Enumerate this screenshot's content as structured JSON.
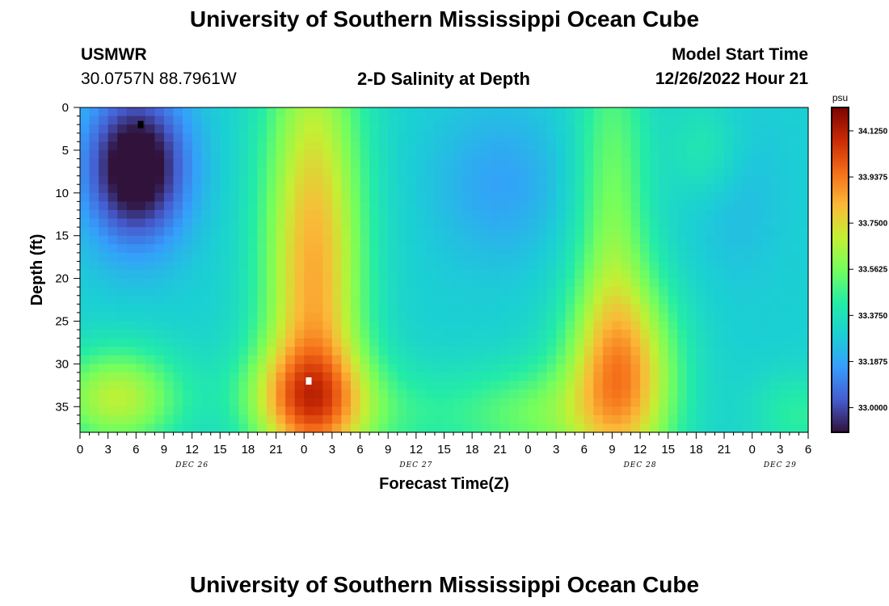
{
  "page": {
    "title_top": "University of Southern Mississippi Ocean Cube",
    "title_bottom": "University of Southern Mississippi Ocean Cube",
    "station_name": "USMWR",
    "station_coords": "30.0757N  88.7961W",
    "plot_title": "2-D Salinity at Depth",
    "model_start_label": "Model Start Time",
    "model_start_value": "12/26/2022 Hour 21"
  },
  "chart_data": {
    "type": "heatmap",
    "title": "2-D Salinity at Depth",
    "xlabel": "Forecast Time(Z)",
    "ylabel": "Depth (ft)",
    "xlim": [
      0,
      78
    ],
    "ylim": [
      38,
      0
    ],
    "y_inverted": true,
    "x_ticks": [
      0,
      3,
      6,
      9,
      12,
      15,
      18,
      21,
      24,
      27,
      30,
      33,
      36,
      39,
      42,
      45,
      48,
      51,
      54,
      57,
      60,
      63,
      66,
      69,
      72,
      75,
      78
    ],
    "x_tick_labels": [
      "0",
      "3",
      "6",
      "9",
      "12",
      "15",
      "18",
      "21",
      "0",
      "3",
      "6",
      "9",
      "12",
      "15",
      "18",
      "21",
      "0",
      "3",
      "6",
      "9",
      "12",
      "15",
      "18",
      "21",
      "0",
      "3",
      "6"
    ],
    "date_labels": [
      {
        "x": 12,
        "label": "DEC 26"
      },
      {
        "x": 36,
        "label": "DEC 27"
      },
      {
        "x": 60,
        "label": "DEC 28"
      },
      {
        "x": 75,
        "label": "DEC 29"
      }
    ],
    "y_ticks": [
      0,
      5,
      10,
      15,
      20,
      25,
      30,
      35
    ],
    "y_tick_labels": [
      "0",
      "5",
      "10",
      "15",
      "20",
      "25",
      "30",
      "35"
    ],
    "colorbar": {
      "unit": "psu",
      "min": 32.9,
      "max": 34.22,
      "ticks": [
        33.0,
        33.1875,
        33.375,
        33.5625,
        33.75,
        33.9375,
        34.125
      ],
      "tick_labels": [
        "33.0000",
        "33.1875",
        "33.3750",
        "33.5625",
        "33.7500",
        "33.9375",
        "34.1250"
      ],
      "colormap": "turbo"
    },
    "markers": [
      {
        "x": 6.5,
        "y": 2,
        "color": "#000000"
      },
      {
        "x": 24.5,
        "y": 32,
        "color": "#ffffff"
      }
    ],
    "features": {
      "base_psu": 33.3,
      "blobs": [
        {
          "x": 6,
          "y": 7,
          "sx": 5.5,
          "sy": 9,
          "amp": -0.5
        },
        {
          "x": 25,
          "y": 20,
          "sx": 5.5,
          "sy": 30,
          "amp": 0.55
        },
        {
          "x": 24,
          "y": 34,
          "sx": 7,
          "sy": 6,
          "amp": 0.35
        },
        {
          "x": 4,
          "y": 34,
          "sx": 7,
          "sy": 6,
          "amp": 0.38
        },
        {
          "x": 34,
          "y": 36,
          "sx": 8,
          "sy": 6,
          "amp": 0.12
        },
        {
          "x": 48,
          "y": 36,
          "sx": 8,
          "sy": 6,
          "amp": 0.22
        },
        {
          "x": 45,
          "y": 9,
          "sx": 7,
          "sy": 9,
          "amp": -0.12
        },
        {
          "x": 58,
          "y": 32,
          "sx": 6,
          "sy": 12,
          "amp": 0.55
        },
        {
          "x": 57,
          "y": 10,
          "sx": 4,
          "sy": 20,
          "amp": 0.25
        },
        {
          "x": 67,
          "y": 5,
          "sx": 4,
          "sy": 6,
          "amp": 0.12
        },
        {
          "x": 70,
          "y": 10,
          "sx": 5,
          "sy": 10,
          "amp": -0.06
        },
        {
          "x": 77,
          "y": 36,
          "sx": 5,
          "sy": 5,
          "amp": 0.14
        }
      ]
    }
  }
}
